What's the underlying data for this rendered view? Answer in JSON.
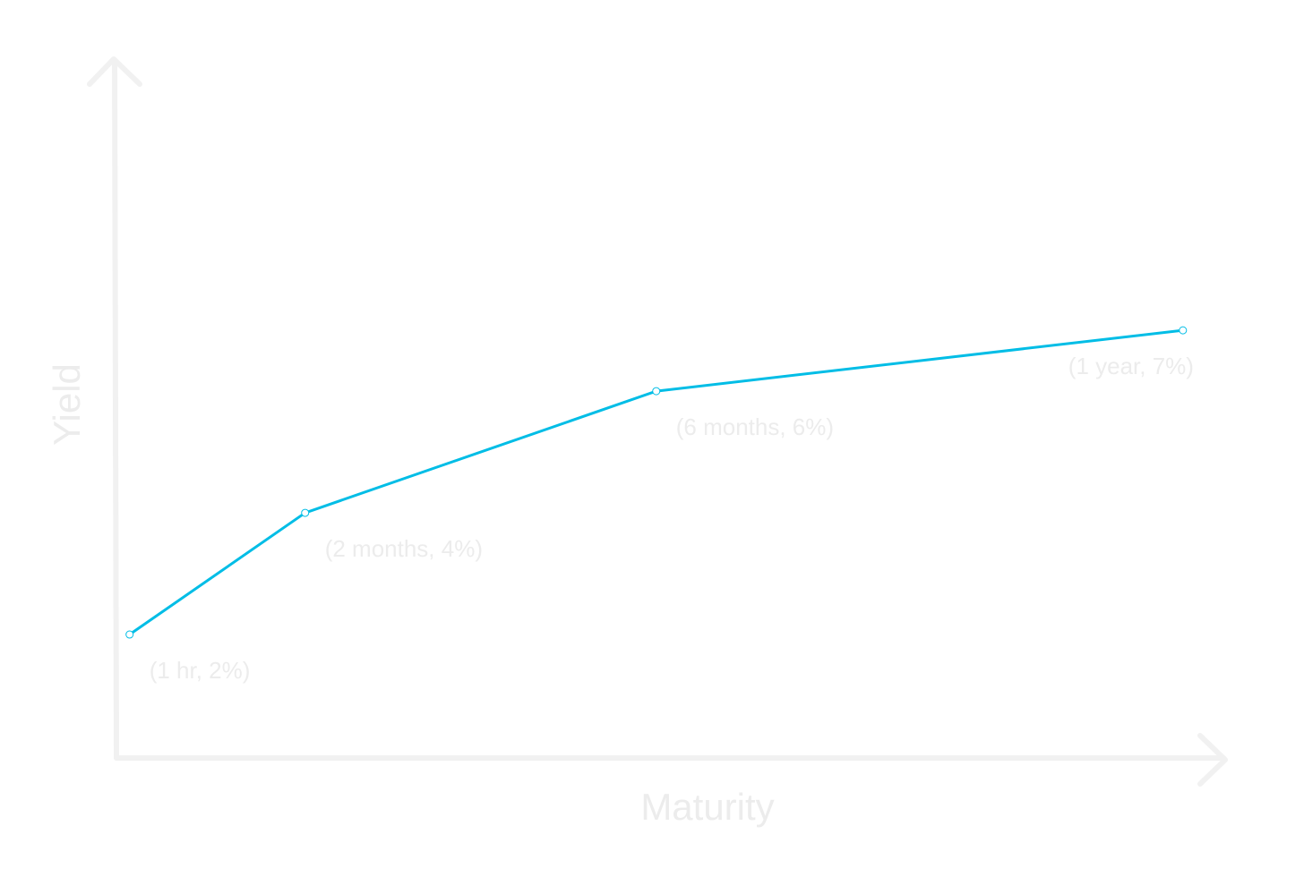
{
  "chart_data": {
    "type": "line",
    "x_label": "Maturity",
    "y_label": "Yield",
    "x": [
      0,
      2,
      6,
      12
    ],
    "series": [
      {
        "color": "#00bde6",
        "values": [
          2,
          4,
          6,
          7
        ],
        "value_labels": [
          "(1 hr, 2%)",
          "(2 months, 4%)",
          "(6 months, 6%)",
          "(1 year, 7%)"
        ]
      }
    ],
    "xlim": [
      -0.15,
      12.4
    ],
    "ylim": [
      0,
      11.4
    ],
    "grid": false
  }
}
